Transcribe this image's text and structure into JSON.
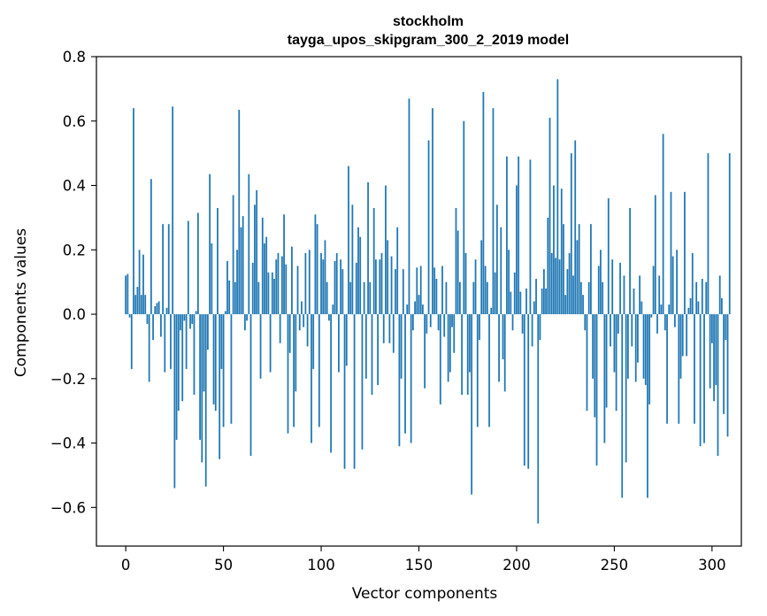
{
  "chart_data": {
    "type": "bar",
    "title": "stockholm",
    "subtitle": "tayga_upos_skipgram_300_2_2019 model",
    "xlabel": "Vector components",
    "ylabel": "Components values",
    "xlim": [
      -15,
      315
    ],
    "ylim": [
      -0.72,
      0.8
    ],
    "x_ticks": [
      0,
      50,
      100,
      150,
      200,
      250,
      300
    ],
    "y_ticks": [
      -0.6,
      -0.4,
      -0.2,
      0.0,
      0.2,
      0.4,
      0.6,
      0.8
    ],
    "x_tick_labels": [
      "0",
      "50",
      "100",
      "150",
      "200",
      "250",
      "300"
    ],
    "y_tick_labels": [
      "−0.6",
      "−0.4",
      "−0.2",
      "0.0",
      "0.2",
      "0.4",
      "0.6",
      "0.8"
    ],
    "grid": false,
    "bar_color": "#1f77b4",
    "values": [
      0.12,
      0.125,
      -0.01,
      -0.17,
      0.64,
      0.06,
      0.085,
      0.2,
      0.06,
      0.185,
      0.06,
      -0.03,
      -0.21,
      0.42,
      -0.08,
      0.025,
      0.035,
      0.04,
      -0.07,
      0.28,
      -0.18,
      0.02,
      0.28,
      -0.17,
      0.645,
      -0.54,
      -0.39,
      -0.3,
      -0.05,
      -0.27,
      -0.02,
      -0.17,
      0.29,
      -0.045,
      -0.03,
      -0.25,
      0.01,
      0.315,
      -0.39,
      -0.46,
      -0.24,
      -0.535,
      -0.11,
      0.435,
      0.22,
      -0.28,
      -0.3,
      0.33,
      -0.45,
      -0.17,
      -0.35,
      0.01,
      0.165,
      0.105,
      -0.34,
      0.37,
      0.1,
      0.2,
      0.635,
      0.27,
      0.305,
      -0.05,
      -0.02,
      0.435,
      -0.44,
      0.16,
      0.34,
      0.385,
      0.1,
      -0.2,
      0.3,
      0.22,
      0.24,
      0.13,
      -0.18,
      0.13,
      0.11,
      0.17,
      0.19,
      -0.09,
      0.18,
      0.31,
      0.155,
      -0.37,
      -0.12,
      0.21,
      -0.35,
      -0.24,
      0.15,
      -0.05,
      0.04,
      -0.04,
      0.19,
      -0.1,
      0.2,
      -0.4,
      -0.17,
      0.31,
      0.28,
      -0.35,
      0.19,
      0.17,
      0.23,
      0.1,
      -0.02,
      -0.43,
      0.03,
      0.165,
      0.19,
      -0.18,
      0.17,
      0.14,
      -0.48,
      -0.16,
      0.46,
      0.1,
      0.34,
      -0.48,
      0.16,
      0.27,
      0.24,
      -0.42,
      0.1,
      -0.2,
      0.41,
      0.1,
      -0.25,
      0.33,
      0.17,
      -0.22,
      0.17,
      0.19,
      -0.09,
      0.4,
      0.23,
      -0.09,
      0.18,
      -0.12,
      0.14,
      0.27,
      -0.41,
      -0.2,
      0.14,
      -0.37,
      0.03,
      0.67,
      -0.4,
      -0.05,
      0.04,
      0.145,
      0.06,
      0.15,
      0.03,
      -0.23,
      -0.06,
      0.54,
      -0.04,
      0.64,
      0.145,
      0.11,
      -0.05,
      -0.28,
      0.15,
      -0.07,
      0.1,
      -0.21,
      -0.18,
      -0.04,
      -0.12,
      0.33,
      0.26,
      0.1,
      -0.25,
      0.6,
      0.19,
      -0.25,
      -0.18,
      -0.56,
      0.1,
      0.17,
      -0.35,
      -0.08,
      0.23,
      0.69,
      0.15,
      0.1,
      -0.35,
      0.02,
      0.64,
      0.13,
      0.34,
      -0.21,
      0.27,
      -0.14,
      -0.24,
      0.49,
      0.2,
      0.07,
      -0.05,
      0.13,
      0.4,
      0.49,
      0.07,
      -0.06,
      -0.47,
      0.08,
      -0.48,
      0.48,
      -0.1,
      0.04,
      0.11,
      -0.65,
      -0.08,
      0.08,
      0.14,
      0.08,
      0.3,
      0.61,
      0.19,
      0.4,
      0.175,
      0.73,
      0.17,
      0.39,
      0.28,
      0.06,
      0.14,
      0.19,
      0.5,
      0.12,
      0.54,
      0.23,
      0.28,
      0.1,
      0.06,
      -0.05,
      -0.3,
      0.1,
      0.28,
      -0.2,
      -0.32,
      -0.47,
      0.15,
      0.2,
      0.1,
      -0.4,
      -0.29,
      0.36,
      -0.1,
      0.17,
      -0.18,
      -0.3,
      -0.06,
      0.16,
      -0.57,
      0.12,
      -0.46,
      -0.2,
      0.33,
      -0.1,
      0.08,
      -0.21,
      -0.15,
      0.12,
      0.04,
      -0.2,
      -0.22,
      -0.57,
      -0.28,
      -0.01,
      0.15,
      0.37,
      -0.06,
      0.12,
      0.03,
      0.56,
      -0.05,
      -0.34,
      0.03,
      0.38,
      0.18,
      -0.04,
      0.2,
      -0.34,
      -0.2,
      -0.13,
      0.38,
      -0.13,
      0.02,
      0.05,
      0.19,
      -0.34,
      0.1,
      0.04,
      -0.41,
      0.11,
      -0.4,
      0.1,
      0.5,
      -0.23,
      -0.09,
      -0.27,
      -0.22,
      -0.44,
      0.12,
      0.05,
      -0.31,
      -0.08,
      -0.38,
      0.5
    ]
  }
}
